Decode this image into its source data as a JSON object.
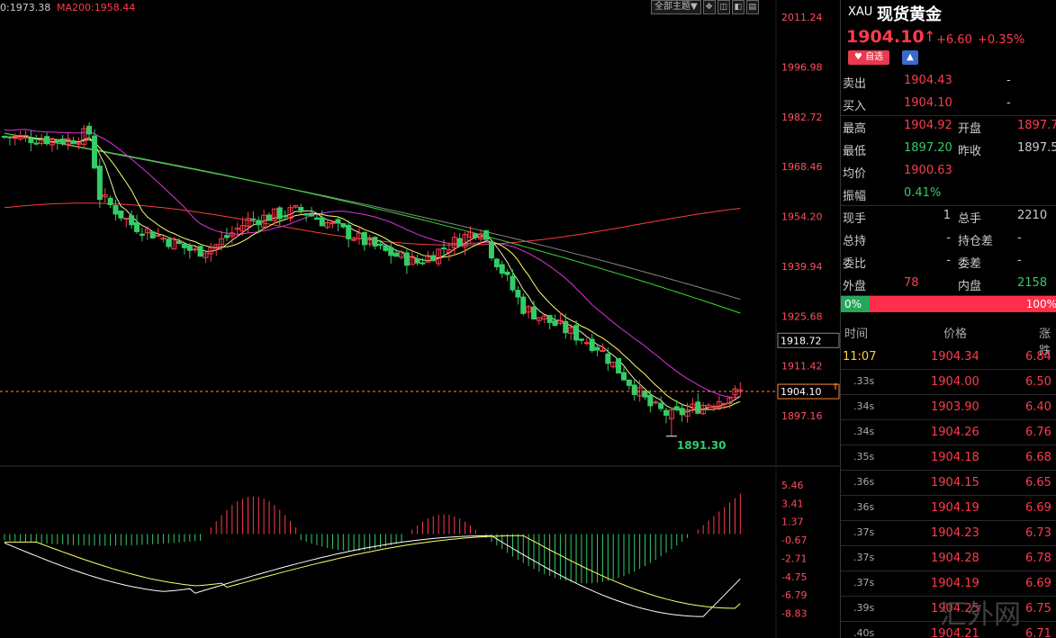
{
  "ma_labels": [
    {
      "text": "0:1973.38",
      "color": "#cccccc"
    },
    {
      "text": "MA200:1958.44",
      "color": "#ff3b4d"
    }
  ],
  "toolbar": {
    "theme_label": "全部主题▼",
    "icons": [
      "layout-grid-icon",
      "zoom-in-icon",
      "zoom-out-icon",
      "more-icon"
    ],
    "icon_glyphs": [
      "✥",
      "◫",
      "◧",
      "▤"
    ]
  },
  "chart_data": {
    "type": "candlestick",
    "price_axis": {
      "min": 1891.3,
      "max": 2011.24,
      "ticks": [
        "2011.24",
        "1996.98",
        "1982.72",
        "1968.46",
        "1954.20",
        "1939.94",
        "1925.68",
        "1911.42",
        "1897.16"
      ],
      "tick_values": [
        2011.24,
        1996.98,
        1982.72,
        1968.46,
        1954.2,
        1939.94,
        1925.68,
        1911.42,
        1897.16
      ]
    },
    "crosshair_price": "1918.72",
    "current_price": "1904.10",
    "low_label": "1891.30",
    "macd_axis": {
      "ticks": [
        "5.46",
        "3.41",
        "1.37",
        "-0.67",
        "-2.71",
        "-4.75",
        "-6.79",
        "-8.83"
      ],
      "tick_values": [
        5.46,
        3.41,
        1.37,
        -0.67,
        -2.71,
        -4.75,
        -6.79,
        -8.83
      ]
    },
    "series_colors": {
      "ma5": "#eeeeaa",
      "ma10": "#ffff66",
      "ma20": "#dd33dd",
      "ma30": "#33dd33",
      "ma60": "#888888",
      "ma200": "#ff3b3b",
      "up": "#ff3b4d",
      "down": "#33cc66"
    }
  },
  "panel": {
    "symbol_code": "XAU",
    "symbol_name": "现货黄金",
    "price": "1904.10",
    "arrow": "↑",
    "change": "+6.60",
    "change_pct": "+0.35%",
    "fav_label": "自选",
    "bell_glyph": "🔔",
    "quotes": [
      {
        "l1": "卖出",
        "v1": "1904.43",
        "c1": "#ff3b4d",
        "l2": "",
        "v2": "-",
        "c2": "#cccccc"
      },
      {
        "l1": "买入",
        "v1": "1904.10",
        "c1": "#ff3b4d",
        "l2": "",
        "v2": "-",
        "c2": "#cccccc"
      },
      {
        "l1": "最高",
        "v1": "1904.92",
        "c1": "#ff3b4d",
        "l2": "开盘",
        "v2": "1897.7",
        "c2": "#ff3b4d"
      },
      {
        "l1": "最低",
        "v1": "1897.20",
        "c1": "#33cc66",
        "l2": "昨收",
        "v2": "1897.5",
        "c2": "#cccccc"
      },
      {
        "l1": "均价",
        "v1": "1900.63",
        "c1": "#ff3b4d",
        "l2": "",
        "v2": "",
        "c2": "#cccccc"
      },
      {
        "l1": "振幅",
        "v1": "0.41%",
        "c1": "#33cc66",
        "l2": "",
        "v2": "",
        "c2": "#cccccc"
      },
      {
        "l1": "现手",
        "v1": "1",
        "c1": "#cccccc",
        "l2": "总手",
        "v2": "2210",
        "c2": "#cccccc"
      },
      {
        "l1": "总持",
        "v1": "-",
        "c1": "#cccccc",
        "l2": "持仓差",
        "v2": "-",
        "c2": "#cccccc"
      },
      {
        "l1": "委比",
        "v1": "-",
        "c1": "#cccccc",
        "l2": "委差",
        "v2": "-",
        "c2": "#cccccc"
      },
      {
        "l1": "外盘",
        "v1": "78",
        "c1": "#ff3b4d",
        "l2": "内盘",
        "v2": "2158",
        "c2": "#33cc66"
      }
    ],
    "ratio": {
      "left": "0%",
      "right": "100%",
      "left_fraction": 0.0
    },
    "tick_headers": {
      "time": "时间",
      "price": "价格",
      "change": "涨跌"
    },
    "ticks": [
      {
        "t": "11:07",
        "p": "1904.34",
        "c": "6.84",
        "tc": "#ffcc33"
      },
      {
        "t": ".33s",
        "p": "1904.00",
        "c": "6.50",
        "tc": "#aaaaaa"
      },
      {
        "t": ".34s",
        "p": "1903.90",
        "c": "6.40",
        "tc": "#aaaaaa"
      },
      {
        "t": ".34s",
        "p": "1904.26",
        "c": "6.76",
        "tc": "#aaaaaa"
      },
      {
        "t": ".35s",
        "p": "1904.18",
        "c": "6.68",
        "tc": "#aaaaaa"
      },
      {
        "t": ".36s",
        "p": "1904.15",
        "c": "6.65",
        "tc": "#aaaaaa"
      },
      {
        "t": ".36s",
        "p": "1904.19",
        "c": "6.69",
        "tc": "#aaaaaa"
      },
      {
        "t": ".37s",
        "p": "1904.23",
        "c": "6.73",
        "tc": "#aaaaaa"
      },
      {
        "t": ".37s",
        "p": "1904.28",
        "c": "6.78",
        "tc": "#aaaaaa"
      },
      {
        "t": ".37s",
        "p": "1904.19",
        "c": "6.69",
        "tc": "#aaaaaa"
      },
      {
        "t": ".39s",
        "p": "1904.25",
        "c": "6.75",
        "tc": "#aaaaaa"
      },
      {
        "t": ".40s",
        "p": "1904.21",
        "c": "6.71",
        "tc": "#aaaaaa"
      }
    ],
    "watermark": "汇外网"
  }
}
